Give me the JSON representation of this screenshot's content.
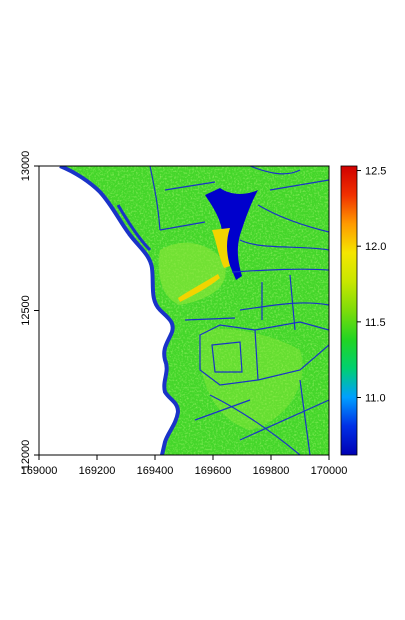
{
  "map": {
    "x_ticks": [
      {
        "value": 169000,
        "label": "169000"
      },
      {
        "value": 169200,
        "label": "169200"
      },
      {
        "value": 169400,
        "label": "169400"
      },
      {
        "value": 169600,
        "label": "169600"
      },
      {
        "value": 169800,
        "label": "169800"
      },
      {
        "value": 170000,
        "label": "170000"
      }
    ],
    "y_ticks": [
      {
        "value": 12000,
        "label": "12000"
      },
      {
        "value": 12500,
        "label": "12500"
      },
      {
        "value": 13000,
        "label": "13000"
      }
    ],
    "x_range": [
      169000,
      170000
    ],
    "y_range": [
      12000,
      13000
    ],
    "colors": {
      "sea": "#ffffff",
      "land_base": "#44d62a",
      "land_light": "#8fe83a",
      "field_boundary": "#1a33c8",
      "deep_low": "#0000cc",
      "high_yellow": "#f2d400",
      "frame": "#000000"
    }
  },
  "legend": {
    "ticks": [
      {
        "value": 11.0,
        "label": "11.0"
      },
      {
        "value": 11.5,
        "label": "11.5"
      },
      {
        "value": 12.0,
        "label": "12.0"
      },
      {
        "value": 12.5,
        "label": "12.5"
      }
    ],
    "range": [
      10.62,
      12.53
    ],
    "gradient": [
      "#0000b4",
      "#0030e6",
      "#00a0ff",
      "#00d070",
      "#22d522",
      "#7ddc0a",
      "#c8e600",
      "#f5e600",
      "#ff9a00",
      "#f03000",
      "#d00000"
    ]
  }
}
